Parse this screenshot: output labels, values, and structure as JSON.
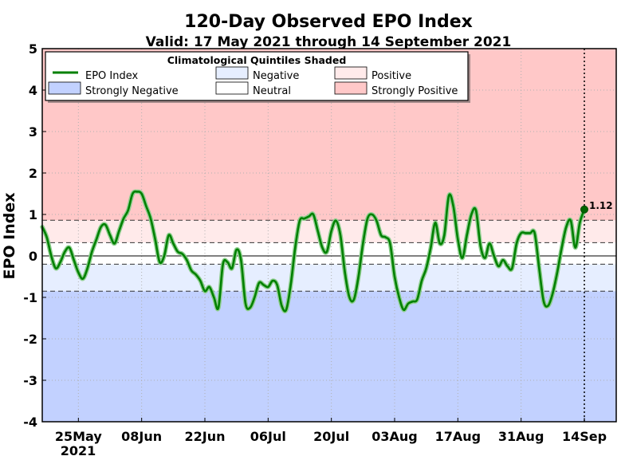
{
  "chart_data": {
    "type": "line",
    "title": "120-Day Observed EPO Index",
    "subtitle": "Valid: 17 May 2021 through 14 September 2021",
    "ylabel": "EPO Index",
    "xlabel": "",
    "ylim": [
      -4,
      5
    ],
    "yticks": [
      "5",
      "4",
      "3",
      "2",
      "1",
      "0",
      "-1",
      "-2",
      "-3",
      "-4"
    ],
    "xticks": [
      "25May",
      "08Jun",
      "22Jun",
      "06Jul",
      "20Jul",
      "03Aug",
      "17Aug",
      "31Aug",
      "14Sep"
    ],
    "xtick_year": "2021",
    "grid": true,
    "legend_placement": "top-left",
    "legend": {
      "title": "Climatological Quintiles Shaded",
      "items": [
        {
          "label": "EPO Index",
          "kind": "line",
          "color": "#008000"
        },
        {
          "label": "Negative",
          "kind": "patch",
          "color": "#e6eeff"
        },
        {
          "label": "Positive",
          "kind": "patch",
          "color": "#ffeaea"
        },
        {
          "label": "Strongly Negative",
          "kind": "patch",
          "color": "#c2d1ff"
        },
        {
          "label": "Neutral",
          "kind": "patch",
          "color": "#ffffff"
        },
        {
          "label": "Strongly Positive",
          "kind": "patch",
          "color": "#ffc8c8"
        }
      ]
    },
    "quintile_thresholds": [
      -0.85,
      -0.2,
      0.32,
      0.86
    ],
    "shading_colors": {
      "strongly_negative": "#c2d1ff",
      "negative": "#e6eeff",
      "neutral": "#ffffff",
      "positive": "#ffeaea",
      "strongly_positive": "#ffc8c8"
    },
    "last_value": {
      "date": "2021-09-14",
      "value": 1.12,
      "label": "1.12"
    },
    "series": [
      {
        "name": "EPO Index",
        "color": "#008000",
        "points": [
          [
            "2021-05-17",
            0.7
          ],
          [
            "2021-05-18",
            0.45
          ],
          [
            "2021-05-19",
            0.0
          ],
          [
            "2021-05-20",
            -0.3
          ],
          [
            "2021-05-21",
            -0.15
          ],
          [
            "2021-05-22",
            0.1
          ],
          [
            "2021-05-23",
            0.2
          ],
          [
            "2021-05-24",
            -0.1
          ],
          [
            "2021-05-25",
            -0.4
          ],
          [
            "2021-05-26",
            -0.55
          ],
          [
            "2021-05-27",
            -0.3
          ],
          [
            "2021-05-28",
            0.1
          ],
          [
            "2021-05-29",
            0.4
          ],
          [
            "2021-05-30",
            0.7
          ],
          [
            "2021-05-31",
            0.75
          ],
          [
            "2021-06-01",
            0.5
          ],
          [
            "2021-06-02",
            0.3
          ],
          [
            "2021-06-03",
            0.6
          ],
          [
            "2021-06-04",
            0.9
          ],
          [
            "2021-06-05",
            1.1
          ],
          [
            "2021-06-06",
            1.5
          ],
          [
            "2021-06-07",
            1.55
          ],
          [
            "2021-06-08",
            1.5
          ],
          [
            "2021-06-09",
            1.2
          ],
          [
            "2021-06-10",
            0.9
          ],
          [
            "2021-06-11",
            0.4
          ],
          [
            "2021-06-12",
            -0.15
          ],
          [
            "2021-06-13",
            0.0
          ],
          [
            "2021-06-14",
            0.5
          ],
          [
            "2021-06-15",
            0.3
          ],
          [
            "2021-06-16",
            0.1
          ],
          [
            "2021-06-17",
            0.05
          ],
          [
            "2021-06-18",
            -0.1
          ],
          [
            "2021-06-19",
            -0.35
          ],
          [
            "2021-06-20",
            -0.45
          ],
          [
            "2021-06-21",
            -0.6
          ],
          [
            "2021-06-22",
            -0.85
          ],
          [
            "2021-06-23",
            -0.75
          ],
          [
            "2021-06-24",
            -1.0
          ],
          [
            "2021-06-25",
            -1.25
          ],
          [
            "2021-06-26",
            -0.2
          ],
          [
            "2021-06-27",
            -0.15
          ],
          [
            "2021-06-28",
            -0.3
          ],
          [
            "2021-06-29",
            0.15
          ],
          [
            "2021-06-30",
            -0.1
          ],
          [
            "2021-07-01",
            -1.15
          ],
          [
            "2021-07-02",
            -1.25
          ],
          [
            "2021-07-03",
            -1.0
          ],
          [
            "2021-07-04",
            -0.65
          ],
          [
            "2021-07-05",
            -0.7
          ],
          [
            "2021-07-06",
            -0.75
          ],
          [
            "2021-07-07",
            -0.6
          ],
          [
            "2021-07-08",
            -0.7
          ],
          [
            "2021-07-09",
            -1.2
          ],
          [
            "2021-07-10",
            -1.3
          ],
          [
            "2021-07-11",
            -0.7
          ],
          [
            "2021-07-12",
            0.2
          ],
          [
            "2021-07-13",
            0.85
          ],
          [
            "2021-07-14",
            0.9
          ],
          [
            "2021-07-15",
            0.95
          ],
          [
            "2021-07-16",
            1.0
          ],
          [
            "2021-07-17",
            0.6
          ],
          [
            "2021-07-18",
            0.2
          ],
          [
            "2021-07-19",
            0.1
          ],
          [
            "2021-07-20",
            0.6
          ],
          [
            "2021-07-21",
            0.85
          ],
          [
            "2021-07-22",
            0.5
          ],
          [
            "2021-07-23",
            -0.4
          ],
          [
            "2021-07-24",
            -1.0
          ],
          [
            "2021-07-25",
            -1.05
          ],
          [
            "2021-07-26",
            -0.5
          ],
          [
            "2021-07-27",
            0.3
          ],
          [
            "2021-07-28",
            0.9
          ],
          [
            "2021-07-29",
            1.0
          ],
          [
            "2021-07-30",
            0.85
          ],
          [
            "2021-07-31",
            0.5
          ],
          [
            "2021-08-01",
            0.45
          ],
          [
            "2021-08-02",
            0.3
          ],
          [
            "2021-08-03",
            -0.5
          ],
          [
            "2021-08-04",
            -1.0
          ],
          [
            "2021-08-05",
            -1.3
          ],
          [
            "2021-08-06",
            -1.15
          ],
          [
            "2021-08-07",
            -1.1
          ],
          [
            "2021-08-08",
            -1.05
          ],
          [
            "2021-08-09",
            -0.6
          ],
          [
            "2021-08-10",
            -0.3
          ],
          [
            "2021-08-11",
            0.2
          ],
          [
            "2021-08-12",
            0.8
          ],
          [
            "2021-08-13",
            0.3
          ],
          [
            "2021-08-14",
            0.5
          ],
          [
            "2021-08-15",
            1.45
          ],
          [
            "2021-08-16",
            1.2
          ],
          [
            "2021-08-17",
            0.4
          ],
          [
            "2021-08-18",
            -0.05
          ],
          [
            "2021-08-19",
            0.5
          ],
          [
            "2021-08-20",
            1.0
          ],
          [
            "2021-08-21",
            1.1
          ],
          [
            "2021-08-22",
            0.25
          ],
          [
            "2021-08-23",
            -0.05
          ],
          [
            "2021-08-24",
            0.3
          ],
          [
            "2021-08-25",
            0.0
          ],
          [
            "2021-08-26",
            -0.25
          ],
          [
            "2021-08-27",
            -0.1
          ],
          [
            "2021-08-28",
            -0.25
          ],
          [
            "2021-08-29",
            -0.3
          ],
          [
            "2021-08-30",
            0.3
          ],
          [
            "2021-08-31",
            0.55
          ],
          [
            "2021-09-01",
            0.55
          ],
          [
            "2021-09-02",
            0.55
          ],
          [
            "2021-09-03",
            0.55
          ],
          [
            "2021-09-04",
            -0.3
          ],
          [
            "2021-09-05",
            -1.1
          ],
          [
            "2021-09-06",
            -1.2
          ],
          [
            "2021-09-07",
            -0.9
          ],
          [
            "2021-09-08",
            -0.4
          ],
          [
            "2021-09-09",
            0.2
          ],
          [
            "2021-09-10",
            0.7
          ],
          [
            "2021-09-11",
            0.85
          ],
          [
            "2021-09-12",
            0.2
          ],
          [
            "2021-09-13",
            0.8
          ],
          [
            "2021-09-14",
            1.12
          ]
        ]
      }
    ]
  }
}
